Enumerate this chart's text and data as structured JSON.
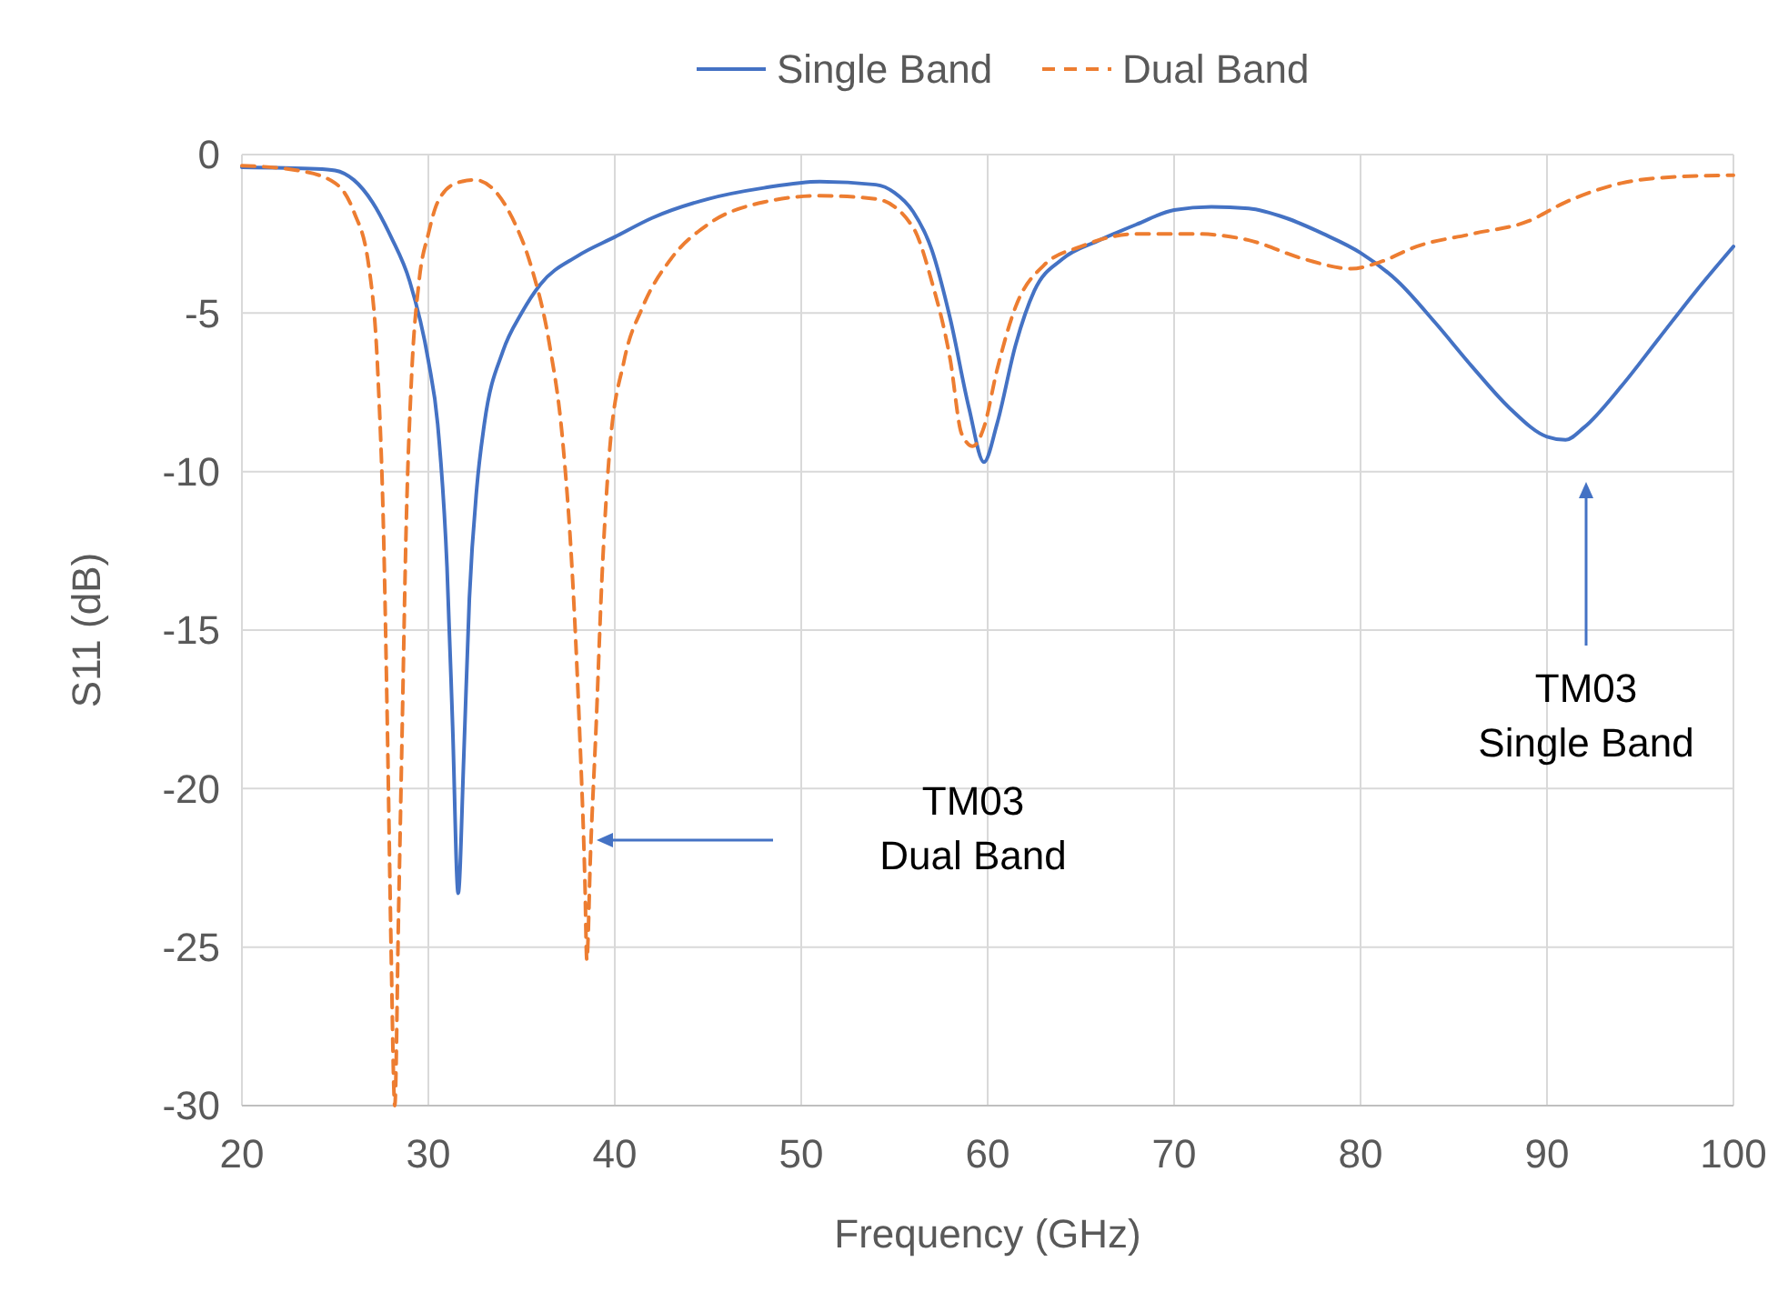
{
  "chart_data": {
    "type": "line",
    "xlabel": "Frequency (GHz)",
    "ylabel": "S11 (dB)",
    "xlim": [
      20,
      100
    ],
    "xticks": [
      20,
      30,
      40,
      50,
      60,
      70,
      80,
      90,
      100
    ],
    "ylim": [
      -30,
      0
    ],
    "yticks": [
      -30,
      -25,
      -20,
      -15,
      -10,
      -5,
      0
    ],
    "grid": true,
    "legend": "top",
    "marker": "none",
    "series": [
      {
        "name": "Single Band",
        "color": "#4472c4",
        "line_style": "solid",
        "x": [
          20,
          24,
          25,
          26,
          27,
          28,
          29,
          30,
          30.5,
          31,
          31.3,
          31.6,
          31.9,
          32.2,
          32.6,
          33,
          34,
          35,
          36,
          38,
          40,
          42,
          45,
          48,
          51,
          54,
          55,
          56,
          57,
          58,
          59,
          59.8,
          60.5,
          61.5,
          62.5,
          64,
          66,
          68,
          70,
          72,
          74,
          76,
          78,
          80,
          82,
          84,
          86,
          88,
          90,
          91,
          92,
          94,
          96,
          98,
          100
        ],
        "values": [
          -0.4,
          -0.45,
          -0.5,
          -0.8,
          -1.5,
          -2.6,
          -4,
          -6.5,
          -8.5,
          -13,
          -18,
          -23.3,
          -19,
          -14,
          -10.5,
          -8.5,
          -6.2,
          -5,
          -4.1,
          -3.2,
          -2.6,
          -2,
          -1.4,
          -1.05,
          -0.85,
          -0.95,
          -1.2,
          -1.8,
          -3,
          -5.2,
          -8,
          -9.7,
          -8.5,
          -6,
          -4.3,
          -3.3,
          -2.7,
          -2.2,
          -1.75,
          -1.65,
          -1.7,
          -2,
          -2.5,
          -3.1,
          -4,
          -5.3,
          -6.7,
          -8,
          -8.9,
          -9,
          -8.6,
          -7.3,
          -5.8,
          -4.3,
          -2.9
        ]
      },
      {
        "name": "Dual Band",
        "color": "#ed7d31",
        "line_style": "dashed",
        "x": [
          20,
          23,
          25,
          26,
          26.8,
          27.3,
          27.6,
          27.8,
          28,
          28.2,
          28.4,
          28.6,
          28.8,
          29.1,
          29.5,
          30,
          30.5,
          31.5,
          32.5,
          33.5,
          34.5,
          35.5,
          36.5,
          37.2,
          37.7,
          38.1,
          38.4,
          38.5,
          38.7,
          39,
          39.3,
          39.7,
          40.5,
          41.5,
          43,
          45,
          48,
          51,
          54,
          56,
          57,
          58,
          58.6,
          59.2,
          59.8,
          60.5,
          61.5,
          63,
          65,
          68,
          71,
          74,
          77,
          79.5,
          81,
          83,
          86,
          89,
          91,
          94,
          97,
          100
        ],
        "values": [
          -0.35,
          -0.5,
          -0.9,
          -1.8,
          -3.5,
          -7,
          -12,
          -18,
          -25,
          -30,
          -24,
          -18,
          -12,
          -7,
          -4,
          -2.5,
          -1.5,
          -0.9,
          -0.8,
          -1.1,
          -2,
          -3.5,
          -6,
          -9,
          -13,
          -18,
          -23,
          -25.4,
          -22,
          -18,
          -13.5,
          -9.5,
          -6.5,
          -4.8,
          -3.3,
          -2.2,
          -1.5,
          -1.3,
          -1.4,
          -2.3,
          -4,
          -6.5,
          -8.8,
          -9.2,
          -8.6,
          -6.8,
          -4.8,
          -3.5,
          -2.9,
          -2.5,
          -2.5,
          -2.7,
          -3.3,
          -3.6,
          -3.4,
          -2.9,
          -2.5,
          -2.1,
          -1.5,
          -0.9,
          -0.7,
          -0.65
        ]
      }
    ],
    "annotations": [
      "TM03\nDual Band",
      "TM03\nSingle Band"
    ]
  }
}
